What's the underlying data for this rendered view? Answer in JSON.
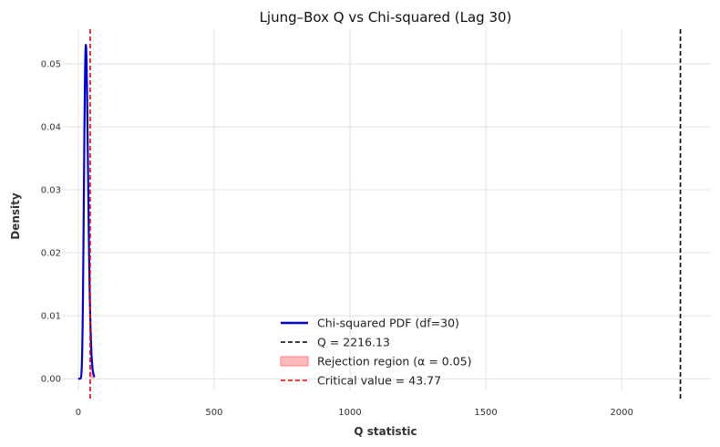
{
  "chart_data": {
    "type": "line",
    "title": "Ljung–Box Q vs Chi-squared (Lag 30)",
    "xlabel": "Q statistic",
    "ylabel": "Density",
    "xlim": [
      -60,
      2325
    ],
    "ylim": [
      -0.002,
      0.0555
    ],
    "x_ticks": [
      0,
      500,
      1000,
      1500,
      2000
    ],
    "x_tick_labels": [
      "0",
      "500",
      "1000",
      "1500",
      "2000"
    ],
    "y_ticks": [
      0.0,
      0.01,
      0.02,
      0.03,
      0.04,
      0.05
    ],
    "y_tick_labels": [
      "0.00",
      "0.01",
      "0.02",
      "0.03",
      "0.04",
      "0.05"
    ],
    "grid": true,
    "legend_position": "lower-center",
    "series": [
      {
        "name": "Chi-squared PDF (df=30)",
        "kind": "line",
        "color": "#0000dd",
        "df": 30,
        "x_range": [
          0,
          60
        ]
      },
      {
        "name": "Q = 2216.13",
        "kind": "vline",
        "color": "#000000",
        "x": 2216.13
      },
      {
        "name": "Rejection region (α = 0.05)",
        "kind": "fill",
        "color": "#ff7f7f",
        "x_range": [
          43.77,
          60
        ]
      },
      {
        "name": "Critical value = 43.77",
        "kind": "vline",
        "color": "#ee0000",
        "x": 43.77
      }
    ]
  }
}
